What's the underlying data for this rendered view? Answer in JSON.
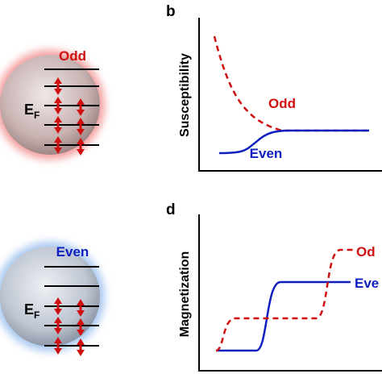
{
  "panel_a": {
    "label": "Odd",
    "fermi": {
      "main": "E",
      "sub": "F"
    }
  },
  "panel_b": {
    "letter": "b",
    "y_label": "Susceptibility",
    "odd_label": "Odd",
    "even_label": "Even"
  },
  "panel_c": {
    "label": "Even",
    "fermi": {
      "main": "E",
      "sub": "F"
    }
  },
  "panel_d": {
    "letter": "d",
    "y_label": "Magnetization",
    "odd_label": "Od",
    "even_label": "Eve"
  }
}
